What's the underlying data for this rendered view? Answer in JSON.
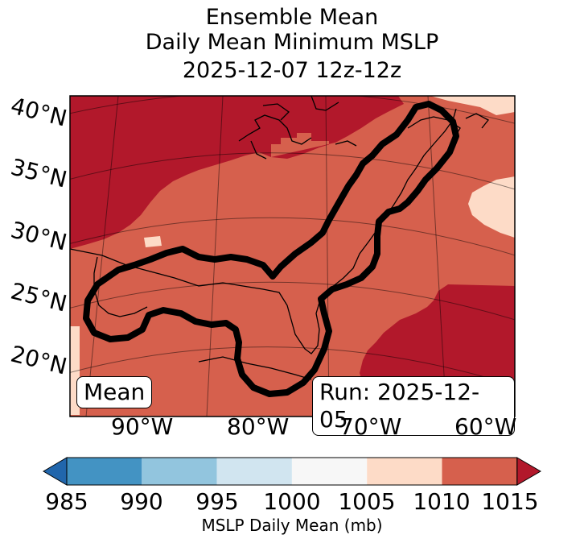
{
  "title": {
    "line1": "Ensemble Mean",
    "line2": "Daily Mean Minimum MSLP",
    "line3": "2025-12-07 12z-12z"
  },
  "map": {
    "lat_labels": [
      "40°N",
      "35°N",
      "30°N",
      "25°N",
      "20°N"
    ],
    "lon_labels": [
      "90°W",
      "80°W",
      "70°W",
      "60°W"
    ],
    "member_label": "Mean",
    "run_label": "Run: 2025-12-05",
    "region": "Gulf of Mexico / US East Coast / Western Atlantic",
    "fill_colors": {
      "1005-1010": "#fddbc7",
      "1010-1015": "#d6604d",
      "above-1015": "#b2182b"
    },
    "contour_color": "#000000"
  },
  "colorbar": {
    "label": "MSLP Daily Mean (mb)",
    "ticks": [
      "985",
      "990",
      "995",
      "1000",
      "1005",
      "1010",
      "1015"
    ],
    "colors": [
      "#4393c3",
      "#92c5de",
      "#d1e5f0",
      "#f7f7f7",
      "#fddbc7",
      "#d6604d"
    ],
    "under_color": "#2166ac",
    "over_color": "#b2182b"
  }
}
